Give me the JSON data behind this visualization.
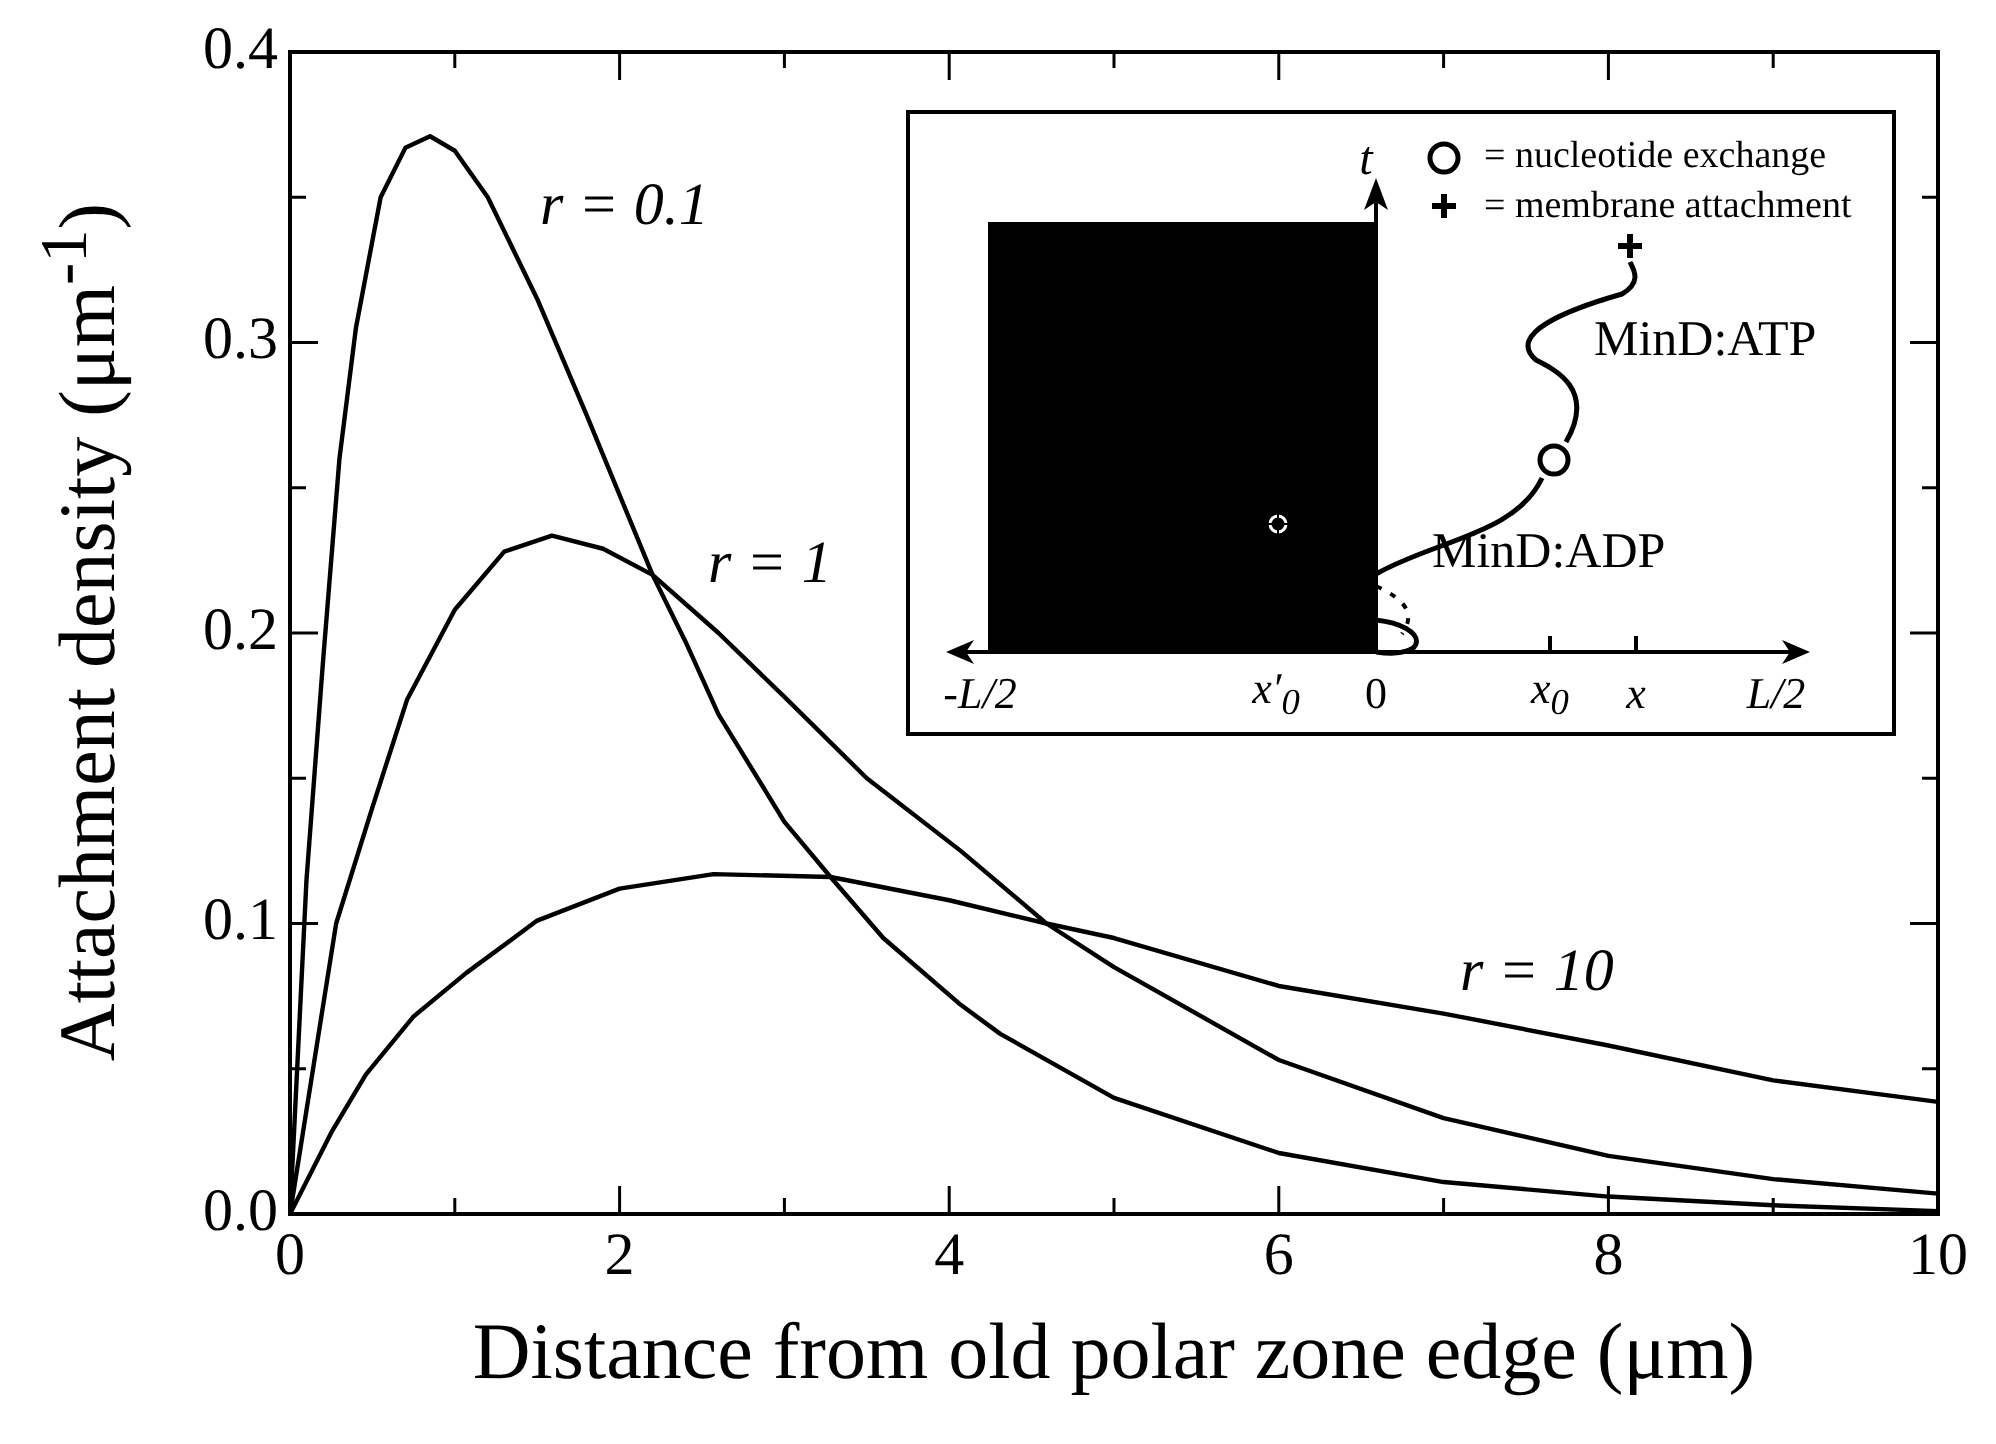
{
  "chart_data": {
    "type": "line",
    "xlabel": "Distance from old polar zone edge (μm)",
    "ylabel": "Attachment density (μm$^{-1}$)",
    "series": [
      {
        "color": "#000000",
        "x": [
          0,
          0.1,
          0.2,
          0.3,
          0.4,
          0.55,
          0.7,
          0.85,
          1.0,
          1.2,
          1.5,
          1.8,
          2.2,
          2.4,
          2.6,
          3.0,
          3.28,
          3.6,
          4.07,
          4.31,
          5,
          6,
          7,
          8,
          9,
          10
        ],
        "values": [
          0,
          0.115,
          0.19,
          0.26,
          0.305,
          0.35,
          0.367,
          0.371,
          0.366,
          0.35,
          0.315,
          0.275,
          0.22,
          0.197,
          0.172,
          0.135,
          0.116,
          0.095,
          0.072,
          0.062,
          0.04,
          0.021,
          0.011,
          0.006,
          0.003,
          0.001
        ]
      },
      {
        "color": "#000000",
        "x": [
          0,
          0.28,
          0.5,
          0.71,
          1.0,
          1.3,
          1.59,
          1.9,
          2.2,
          2.6,
          3.0,
          3.5,
          4.07,
          4.59,
          5,
          6,
          7,
          8,
          9,
          10
        ],
        "values": [
          0,
          0.1,
          0.14,
          0.177,
          0.208,
          0.228,
          0.2335,
          0.229,
          0.22,
          0.2,
          0.178,
          0.15,
          0.125,
          0.1,
          0.085,
          0.053,
          0.033,
          0.02,
          0.012,
          0.007
        ]
      },
      {
        "color": "#000000",
        "x": [
          0,
          0.25,
          0.46,
          0.75,
          1.07,
          1.5,
          2.0,
          2.57,
          3.28,
          4.0,
          4.59,
          5,
          6,
          7,
          8,
          9,
          10
        ],
        "values": [
          0,
          0.028,
          0.048,
          0.068,
          0.083,
          0.101,
          0.112,
          0.117,
          0.116,
          0.108,
          0.1,
          0.095,
          0.0785,
          0.069,
          0.058,
          0.046,
          0.0386
        ]
      }
    ],
    "xlim": [
      0,
      10
    ],
    "xticks": [
      0,
      {
        "value": 1,
        "label": null
      },
      2,
      {
        "value": 3,
        "label": null
      },
      4,
      {
        "value": 5,
        "label": null
      },
      6,
      {
        "value": 7,
        "label": null
      },
      8,
      {
        "value": 9,
        "label": null
      },
      10
    ],
    "ylim": [
      0,
      0.4
    ],
    "yticks": [
      {
        "value": 0,
        "label": "0.0"
      },
      {
        "value": 0.05,
        "label": null
      },
      0.1,
      {
        "value": 0.15,
        "label": null
      },
      0.2,
      {
        "value": 0.25,
        "label": null
      },
      0.3,
      {
        "value": 0.35,
        "label": null
      },
      0.4
    ],
    "line_style": "solid",
    "marker": "none",
    "annotations": [
      "r = 0.1",
      "r = 1",
      "r = 10",
      "t",
      "= nucleotide exchange",
      "= membrane attachment",
      "MinD:ATP",
      "MinD:ADP",
      "-L/2",
      "x′$_{0}$",
      "0",
      "x$_{0}$",
      "x",
      "L/2"
    ]
  }
}
